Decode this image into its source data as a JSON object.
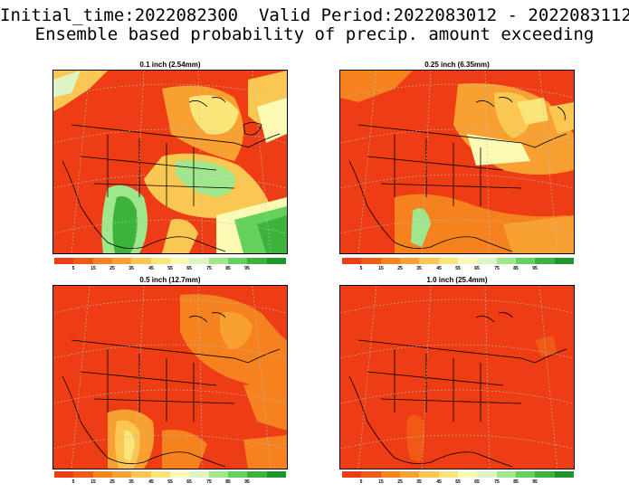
{
  "header": {
    "line1": "Initial_time:2022082300  Valid Period:2022083012 - 2022083112",
    "line2": "Ensemble based probability of precip. amount exceeding"
  },
  "panels": [
    {
      "title": "0.1 inch (2.54mm)",
      "wetness": "light"
    },
    {
      "title": "0.25 inch (6.35mm)",
      "wetness": "moderate"
    },
    {
      "title": "0.5 inch (12.7mm)",
      "wetness": "moderate-dry"
    },
    {
      "title": "1.0 inch (25.4mm)",
      "wetness": "dry"
    }
  ],
  "colorbar": {
    "colors": [
      "#ee3c14",
      "#f05a14",
      "#f5821e",
      "#f8a032",
      "#fac850",
      "#fae678",
      "#fafab4",
      "#dcf5c3",
      "#a0e68c",
      "#64d25a",
      "#3cb43c",
      "#1e962d"
    ],
    "tick_labels": [
      "5",
      "15",
      "25",
      "35",
      "45",
      "55",
      "65",
      "75",
      "85",
      "95"
    ]
  }
}
